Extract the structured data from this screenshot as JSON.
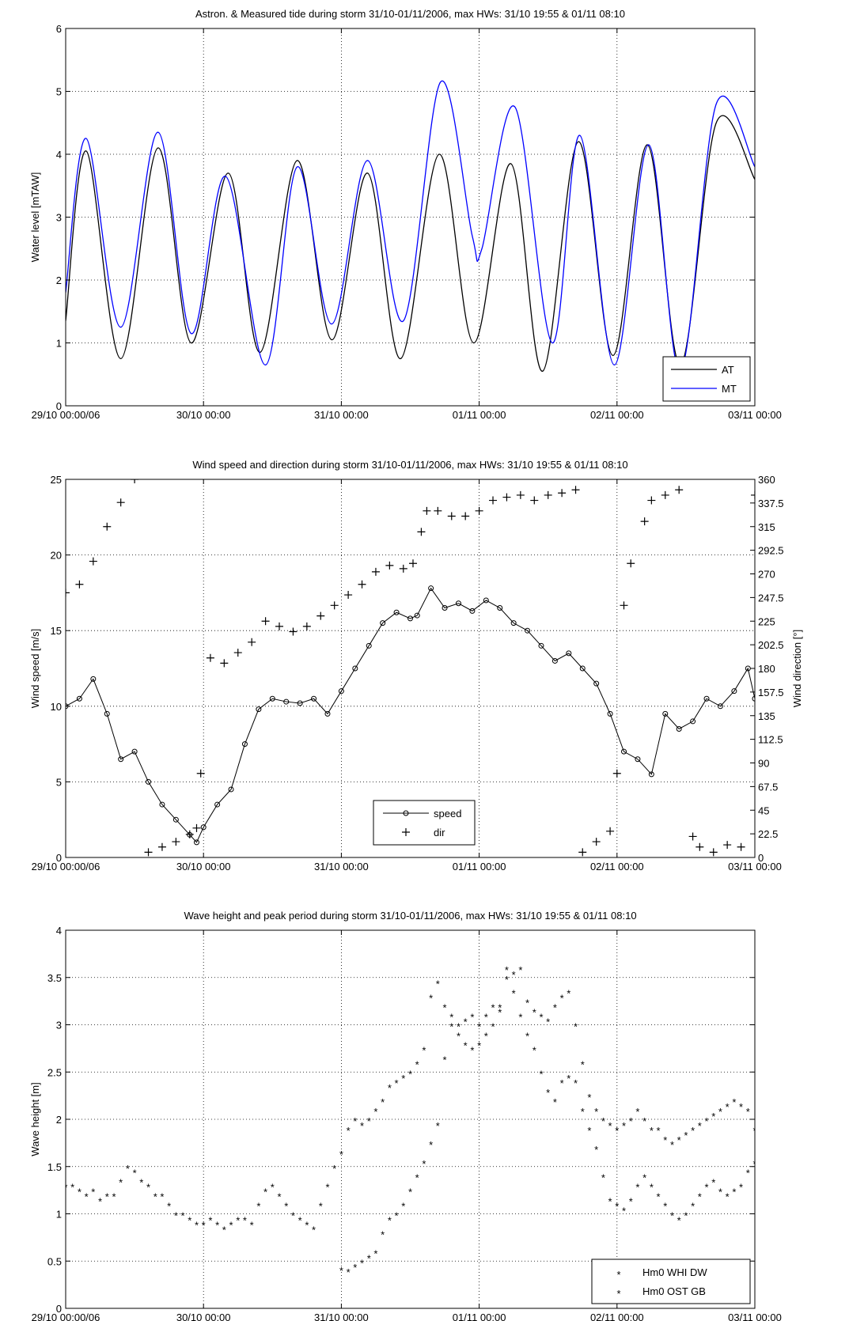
{
  "x_tick_labels": [
    "29/10 00:00/06",
    "30/10 00:00",
    "31/10 00:00",
    "01/11 00:00",
    "02/11 00:00",
    "03/11 00:00"
  ],
  "chart_data": [
    {
      "type": "line",
      "title": "Astron. & Measured tide during storm 31/10-01/11/2006, max HWs: 31/10 19:55 & 01/11 08:10",
      "ylabel": "Water level [mTAW]",
      "xlabel": "",
      "x_unit": "days since 29/10 00:00",
      "xlim": [
        0,
        5
      ],
      "ylim": [
        0,
        6
      ],
      "yticks": [
        "0",
        "1",
        "2",
        "3",
        "4",
        "5",
        "6"
      ],
      "grid": true,
      "legend": "bottom-right",
      "series": [
        {
          "name": "AT",
          "color": "#000000",
          "x": [
            0,
            0.15,
            0.4,
            0.67,
            0.91,
            1.18,
            1.41,
            1.68,
            1.93,
            2.19,
            2.43,
            2.71,
            2.96,
            3.23,
            3.46,
            3.72,
            3.97,
            4.22,
            4.46,
            4.72,
            5.0
          ],
          "y": [
            1.35,
            4.05,
            0.75,
            4.1,
            1.0,
            3.7,
            0.85,
            3.9,
            1.05,
            3.7,
            0.75,
            4.0,
            1.0,
            3.85,
            0.55,
            4.2,
            0.8,
            4.15,
            0.65,
            4.5,
            3.6
          ]
        },
        {
          "name": "MT",
          "color": "#0000ff",
          "x": [
            0,
            0.15,
            0.4,
            0.67,
            0.91,
            1.16,
            1.45,
            1.68,
            1.93,
            2.19,
            2.45,
            2.72,
            2.95,
            3.02,
            3.26,
            3.53,
            3.73,
            3.98,
            4.23,
            4.46,
            4.72,
            5.0
          ],
          "y": [
            1.8,
            4.25,
            1.25,
            4.35,
            1.15,
            3.65,
            0.65,
            3.8,
            1.3,
            3.9,
            1.35,
            5.15,
            2.7,
            2.5,
            4.75,
            1.0,
            4.3,
            0.65,
            4.15,
            0.55,
            4.8,
            3.8
          ]
        }
      ]
    },
    {
      "type": "line",
      "title": "Wind speed and direction during storm 31/10-01/11/2006, max HWs: 31/10 19:55 & 01/11 08:10",
      "ylabel": "Wind speed [m/s]",
      "y2label": "Wind direction [°]",
      "xlabel": "",
      "x_unit": "days since 29/10 00:00",
      "xlim": [
        0,
        5
      ],
      "ylim": [
        0,
        25
      ],
      "y2lim": [
        0,
        360
      ],
      "yticks": [
        "0",
        "5",
        "10",
        "15",
        "20",
        "25"
      ],
      "y2ticks": [
        "0",
        "22.5",
        "45",
        "67.5",
        "90",
        "112.5",
        "135",
        "157.5",
        "180",
        "202.5",
        "225",
        "247.5",
        "270",
        "292.5",
        "315",
        "337.5",
        "360"
      ],
      "grid": true,
      "legend": "bottom-center",
      "series": [
        {
          "name": "speed",
          "marker": "o",
          "axis": "left",
          "color": "#000000",
          "x": [
            0,
            0.1,
            0.2,
            0.3,
            0.4,
            0.5,
            0.6,
            0.7,
            0.8,
            0.9,
            0.95,
            1.0,
            1.1,
            1.2,
            1.3,
            1.4,
            1.5,
            1.6,
            1.7,
            1.8,
            1.9,
            2.0,
            2.1,
            2.2,
            2.3,
            2.4,
            2.5,
            2.55,
            2.65,
            2.75,
            2.85,
            2.95,
            3.05,
            3.15,
            3.25,
            3.35,
            3.45,
            3.55,
            3.65,
            3.75,
            3.85,
            3.95,
            4.05,
            4.15,
            4.25,
            4.35,
            4.45,
            4.55,
            4.65,
            4.75,
            4.85,
            4.95,
            5.0
          ],
          "y": [
            10,
            10.5,
            11.8,
            9.5,
            6.5,
            7,
            5,
            3.5,
            2.5,
            1.5,
            1.0,
            2.0,
            3.5,
            4.5,
            7.5,
            9.8,
            10.5,
            10.3,
            10.2,
            10.5,
            9.5,
            11,
            12.5,
            14,
            15.5,
            16.2,
            15.8,
            16,
            17.8,
            16.5,
            16.8,
            16.3,
            17,
            16.5,
            15.5,
            15,
            14,
            13,
            13.5,
            12.5,
            11.5,
            9.5,
            7,
            6.5,
            5.5,
            9.5,
            8.5,
            9,
            10.5,
            10,
            11,
            12.5,
            10.5
          ]
        },
        {
          "name": "dir",
          "marker": "+",
          "axis": "right",
          "color": "#000000",
          "x": [
            0,
            0.1,
            0.2,
            0.3,
            0.4,
            0.5,
            0.6,
            0.7,
            0.8,
            0.9,
            0.95,
            0.98,
            1.05,
            1.15,
            1.25,
            1.35,
            1.45,
            1.55,
            1.65,
            1.75,
            1.85,
            1.95,
            2.05,
            2.15,
            2.25,
            2.35,
            2.45,
            2.52,
            2.58,
            2.62,
            2.7,
            2.8,
            2.9,
            3.0,
            3.1,
            3.2,
            3.3,
            3.4,
            3.5,
            3.6,
            3.7,
            3.75,
            3.85,
            3.95,
            4.0,
            4.05,
            4.1,
            4.2,
            4.25,
            4.35,
            4.45,
            4.55,
            4.6,
            4.7,
            4.8,
            4.9,
            5.0
          ],
          "y": [
            252,
            260,
            282,
            315,
            338,
            360,
            5,
            10,
            15,
            22,
            28,
            80,
            190,
            185,
            195,
            205,
            225,
            220,
            215,
            220,
            230,
            240,
            250,
            260,
            272,
            278,
            275,
            280,
            310,
            330,
            330,
            325,
            325,
            330,
            340,
            343,
            345,
            340,
            345,
            347,
            350,
            5,
            15,
            25,
            80,
            240,
            280,
            320,
            340,
            345,
            350,
            20,
            10,
            5,
            12,
            10,
            345
          ]
        }
      ]
    },
    {
      "type": "scatter",
      "title": "Wave height and peak period during storm 31/10-01/11/2006, max HWs: 31/10 19:55 & 01/11 08:10",
      "ylabel": "Wave height [m]",
      "xlabel": "",
      "x_unit": "days since 29/10 00:00",
      "xlim": [
        0,
        5
      ],
      "ylim": [
        0,
        4
      ],
      "yticks": [
        "0",
        "0.5",
        "1",
        "1.5",
        "2",
        "2.5",
        "3",
        "3.5",
        "4"
      ],
      "grid": true,
      "legend": "bottom-right",
      "series": [
        {
          "name": "Hm0 WHI DW",
          "marker": "*",
          "color": "#0000ff",
          "x": [
            0,
            0.05,
            0.1,
            0.15,
            0.2,
            0.25,
            0.3,
            0.35,
            0.4,
            0.45,
            0.5,
            0.55,
            0.6,
            0.65,
            0.7,
            0.75,
            0.8,
            0.85,
            0.9,
            0.95,
            1.0,
            1.05,
            1.1,
            1.15,
            1.2,
            1.25,
            1.3,
            1.35,
            1.4,
            1.45,
            1.5,
            1.55,
            1.6,
            1.65,
            1.7,
            1.75,
            1.8,
            1.85,
            1.9,
            1.95,
            2.0,
            2.05,
            2.1,
            2.15,
            2.2,
            2.25,
            2.3,
            2.35,
            2.4,
            2.45,
            2.5,
            2.55,
            2.6,
            2.65,
            2.7,
            2.75,
            2.8,
            2.85,
            2.9,
            2.95,
            3.0,
            3.05,
            3.1,
            3.15,
            3.2,
            3.25,
            3.3,
            3.35,
            3.4,
            3.45,
            3.5,
            3.55,
            3.6,
            3.65,
            3.7,
            3.75,
            3.8,
            3.85,
            3.9,
            3.95,
            4.0,
            4.05,
            4.1,
            4.15,
            4.2,
            4.25,
            4.3,
            4.35,
            4.4,
            4.45,
            4.5,
            4.55,
            4.6,
            4.65,
            4.7,
            4.75,
            4.8,
            4.85,
            4.9,
            4.95,
            5.0
          ],
          "y": [
            1.3,
            1.3,
            1.25,
            1.2,
            1.25,
            1.15,
            1.2,
            1.2,
            1.35,
            1.5,
            1.45,
            1.35,
            1.3,
            1.2,
            1.2,
            1.1,
            1.0,
            1.0,
            0.95,
            0.9,
            0.9,
            0.95,
            0.9,
            0.85,
            0.9,
            0.95,
            0.95,
            0.9,
            1.1,
            1.25,
            1.3,
            1.2,
            1.1,
            1.0,
            0.95,
            0.9,
            0.85,
            1.1,
            1.3,
            1.5,
            1.65,
            1.9,
            2.0,
            1.95,
            2.0,
            2.1,
            2.2,
            2.35,
            2.4,
            2.45,
            2.5,
            2.6,
            2.75,
            3.3,
            3.45,
            3.2,
            3.0,
            3.0,
            3.05,
            3.1,
            3.0,
            3.1,
            3.2,
            3.15,
            3.6,
            3.55,
            3.6,
            3.25,
            3.15,
            3.1,
            3.05,
            3.2,
            3.3,
            3.35,
            3.0,
            2.6,
            2.25,
            2.1,
            2.0,
            1.95,
            1.9,
            1.95,
            2.0,
            2.1,
            2.0,
            1.9,
            1.9,
            1.8,
            1.75,
            1.8,
            1.85,
            1.9,
            1.95,
            2.0,
            2.05,
            2.1,
            2.15,
            2.2,
            2.15,
            2.1,
            1.9
          ]
        },
        {
          "name": "Hm0 OST GB",
          "marker": "*",
          "color": "#000000",
          "x": [
            2.0,
            2.05,
            2.1,
            2.15,
            2.2,
            2.25,
            2.3,
            2.35,
            2.4,
            2.45,
            2.5,
            2.55,
            2.6,
            2.65,
            2.7,
            2.75,
            2.8,
            2.85,
            2.9,
            2.95,
            3.0,
            3.05,
            3.1,
            3.15,
            3.2,
            3.25,
            3.3,
            3.35,
            3.4,
            3.45,
            3.5,
            3.55,
            3.6,
            3.65,
            3.7,
            3.75,
            3.8,
            3.85,
            3.9,
            3.95,
            4.0,
            4.05,
            4.1,
            4.15,
            4.2,
            4.25,
            4.3,
            4.35,
            4.4,
            4.45,
            4.5,
            4.55,
            4.6,
            4.65,
            4.7,
            4.75,
            4.8,
            4.85,
            4.9,
            4.95,
            5.0
          ],
          "y": [
            0.42,
            0.4,
            0.45,
            0.5,
            0.55,
            0.6,
            0.8,
            0.95,
            1.0,
            1.1,
            1.25,
            1.4,
            1.55,
            1.75,
            1.95,
            2.65,
            3.1,
            2.9,
            2.8,
            2.75,
            2.8,
            2.9,
            3.0,
            3.2,
            3.5,
            3.35,
            3.1,
            2.9,
            2.75,
            2.5,
            2.3,
            2.2,
            2.4,
            2.45,
            2.4,
            2.1,
            1.9,
            1.7,
            1.4,
            1.15,
            1.1,
            1.05,
            1.15,
            1.3,
            1.4,
            1.3,
            1.2,
            1.1,
            1.0,
            0.95,
            1.0,
            1.1,
            1.2,
            1.3,
            1.35,
            1.25,
            1.2,
            1.25,
            1.3,
            1.45,
            1.55
          ]
        }
      ]
    }
  ]
}
